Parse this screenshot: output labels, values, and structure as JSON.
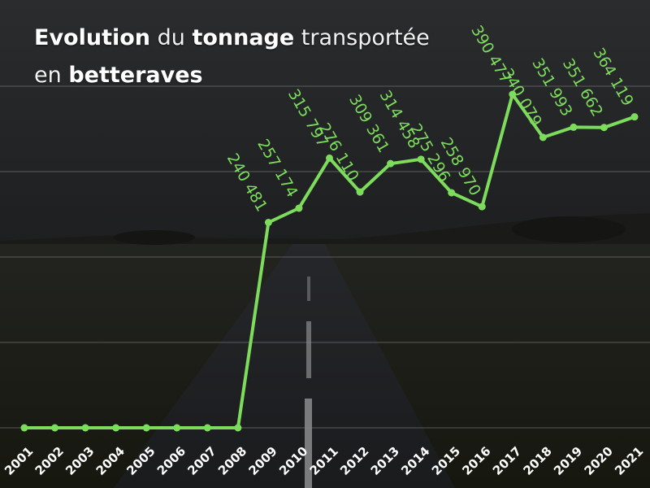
{
  "title": {
    "line1_bold1": "Evolution",
    "line1_text1": " du ",
    "line1_bold2": "tonnage",
    "line1_text2": " transportée",
    "line2_text1": "en ",
    "line2_bold1": "betteraves"
  },
  "colors": {
    "line": "#7ddc5c",
    "label": "#7ddc5c",
    "grid": "#8a8a8a",
    "axis_text": "#ffffff"
  },
  "chart_data": {
    "type": "line",
    "title": "Evolution du tonnage transportée en betteraves",
    "xlabel": "",
    "ylabel": "",
    "x": [
      "2001",
      "2002",
      "2003",
      "2004",
      "2005",
      "2006",
      "2007",
      "2008",
      "2009",
      "2010",
      "2011",
      "2012",
      "2013",
      "2014",
      "2015",
      "2016",
      "2017",
      "2018",
      "2019",
      "2020",
      "2021"
    ],
    "series": [
      {
        "values": [
          0,
          0,
          0,
          0,
          0,
          0,
          0,
          0,
          240481,
          257174,
          315797,
          276110,
          309361,
          314458,
          275296,
          258970,
          390477,
          340079,
          351993,
          351662,
          364119
        ]
      }
    ],
    "data_labels": [
      "",
      "",
      "",
      "",
      "",
      "",
      "",
      "",
      "240 481",
      "257 174",
      "315 797",
      "276 110",
      "309 361",
      "314 458",
      "275 296",
      "258 970",
      "390 477",
      "340 079",
      "351 993",
      "351 662",
      "364 119"
    ],
    "ylim": [
      0,
      400000
    ],
    "grid": true,
    "legend": "none"
  }
}
